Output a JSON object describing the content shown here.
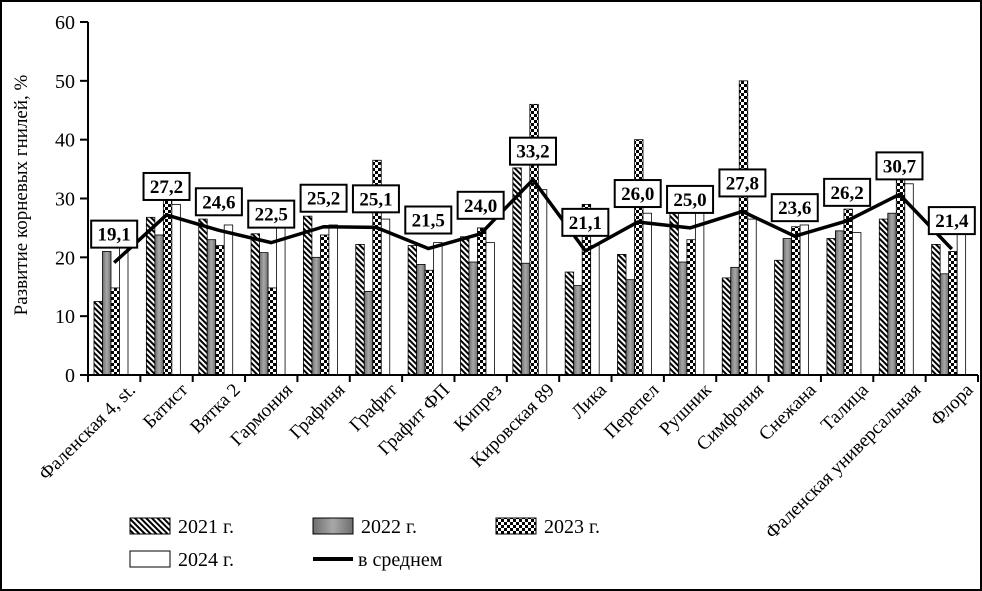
{
  "chart_data": {
    "type": "bar",
    "ylabel": "Развитие корневых гнилей, %",
    "ylim": [
      0,
      60
    ],
    "yticks": [
      0,
      10,
      20,
      30,
      40,
      50,
      60
    ],
    "grid": false,
    "legend_position": "bottom",
    "categories": [
      "Фаленская 4, st.",
      "Батист",
      "Вятка 2",
      "Гармония",
      "Графиня",
      "Графит",
      "Графит ФП",
      "Кипрез",
      "Кировская 89",
      "Лика",
      "Перепел",
      "Рушник",
      "Симфония",
      "Снежана",
      "Талица",
      "Фаленская универсальная",
      "Флора"
    ],
    "series": [
      {
        "name": "2021 г.",
        "pattern": "hatch",
        "values": [
          12.5,
          26.8,
          26.5,
          24.0,
          27.0,
          22.2,
          22.0,
          23.5,
          35.2,
          17.5,
          20.5,
          27.5,
          16.5,
          19.5,
          23.2,
          26.5,
          22.2
        ]
      },
      {
        "name": "2022 г.",
        "pattern": "gray",
        "values": [
          21.0,
          23.8,
          23.0,
          20.8,
          20.0,
          14.2,
          18.8,
          19.2,
          19.0,
          15.2,
          16.2,
          19.2,
          18.3,
          23.2,
          24.5,
          27.5,
          17.2
        ]
      },
      {
        "name": "2023 г.",
        "pattern": "checker",
        "values": [
          14.8,
          30.0,
          22.0,
          14.8,
          23.8,
          36.5,
          17.8,
          25.0,
          46.0,
          29.0,
          40.0,
          23.0,
          50.0,
          25.2,
          28.2,
          35.0,
          21.0
        ]
      },
      {
        "name": "2024 г.",
        "pattern": "white",
        "values": [
          24.0,
          29.0,
          25.5,
          27.5,
          25.5,
          26.5,
          22.5,
          22.5,
          31.5,
          22.0,
          27.5,
          29.5,
          26.5,
          25.5,
          24.2,
          32.5,
          24.5
        ]
      }
    ],
    "average": {
      "name": "в среднем",
      "values": [
        19.1,
        27.2,
        24.6,
        22.5,
        25.2,
        25.1,
        21.5,
        24.0,
        33.2,
        21.1,
        26.0,
        25.0,
        27.8,
        23.6,
        26.2,
        30.7,
        21.4
      ],
      "labels": [
        "19,1",
        "27,2",
        "24,6",
        "22,5",
        "25,2",
        "25,1",
        "21,5",
        "24,0",
        "33,2",
        "21,1",
        "26,0",
        "25,0",
        "27,8",
        "23,6",
        "26,2",
        "30,7",
        "21,4"
      ]
    },
    "legend": [
      "2021 г.",
      "2022 г.",
      "2023 г.",
      "2024 г.",
      "в среднем"
    ]
  }
}
